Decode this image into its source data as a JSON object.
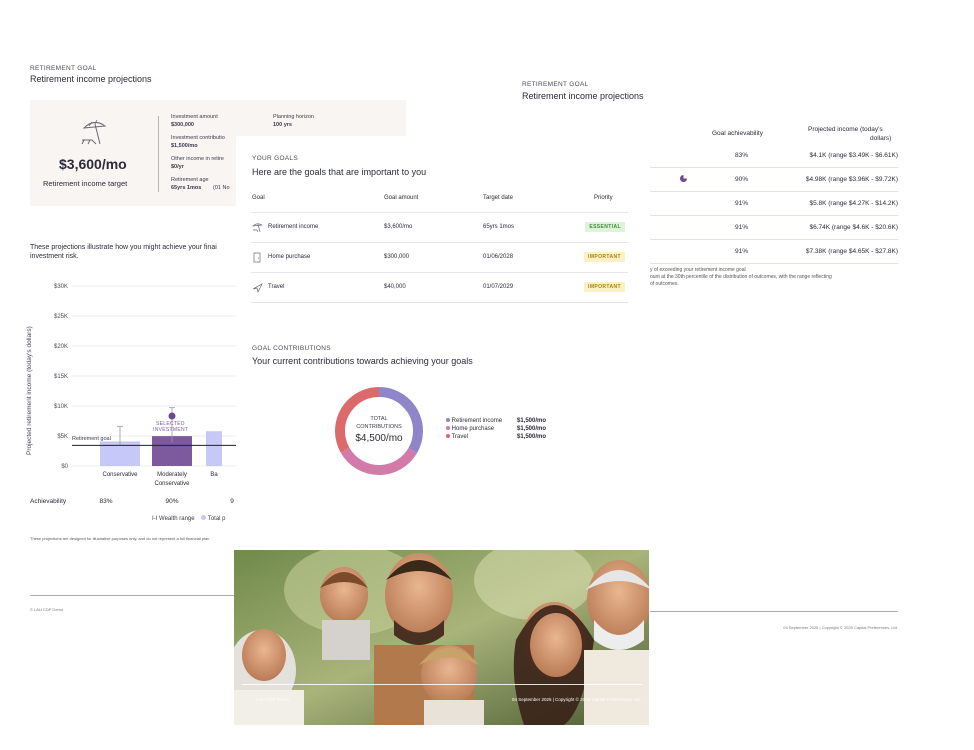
{
  "page1": {
    "eyebrow": "RETIREMENT GOAL",
    "title": "Retirement income projections",
    "target_amount": "$3,600/mo",
    "target_label": "Retirement income target",
    "details": [
      {
        "label": "Investment amount",
        "value": "$300,000"
      },
      {
        "label": "Investment contributio",
        "value": "$1,500/mo"
      },
      {
        "label": "Other income in retire",
        "value": "$0/yr"
      },
      {
        "label": "Retirement age",
        "value": "65yrs 1mos"
      }
    ],
    "retirement_age_extra": "(01 No",
    "planning_label": "Planning horizon",
    "planning_value": "100 yrs",
    "intro_line1": "These projections illustrate how you might achieve your finai",
    "intro_line2": "investment risk.",
    "ylabel": "Projected retirement income (today's dollars)",
    "retirement_goal_label": "Retirement goal",
    "selected_label_1": "SELECTED",
    "selected_label_2": "INVESTMENT",
    "achievability_label": "Achievability",
    "legend_wealth": "Wealth range",
    "legend_total": "Total p",
    "disclaimer": "These projections are designed for illustrative purposes only, and do not represent a full financial plan",
    "footer_left": "© LAU CDP Demo"
  },
  "chart_data": {
    "type": "bar",
    "title": "",
    "ylabel": "Projected retirement income (today's dollars)",
    "ylim": [
      0,
      30000
    ],
    "yticks": [
      "$0",
      "$5K",
      "$10K",
      "$15K",
      "$20K",
      "$25K",
      "$30K"
    ],
    "goal": 3600,
    "categories": [
      "Conservative",
      "Moderately Conservative",
      "Ba"
    ],
    "values": [
      4100,
      4980,
      5800
    ],
    "ranges": [
      [
        3490,
        6610
      ],
      [
        3960,
        9720
      ],
      [
        4270,
        14200
      ]
    ],
    "achievability": [
      "83%",
      "90%",
      "9"
    ],
    "selected_index": 1,
    "bar_colors": [
      "#c6c8f7",
      "#7d5a9e",
      "#c6c8f7"
    ]
  },
  "page2": {
    "eyebrow": "RETIREMENT GOAL",
    "title": "Retirement income projections",
    "col_achievability": "Goal achievability",
    "col_projected_1": "Projected income (today's",
    "col_projected_2": "dollars)",
    "rows": [
      {
        "achievability": "83%",
        "projected": "$4.1K (range $3.49K - $6.61K)"
      },
      {
        "achievability": "90%",
        "projected": "$4.98K (range $3.96K - $9.72K)"
      },
      {
        "achievability": "91%",
        "projected": "$5.8K (range $4.27K - $14.2K)"
      },
      {
        "achievability": "91%",
        "projected": "$6.74K (range $4.6K - $20.6K)"
      },
      {
        "achievability": "91%",
        "projected": "$7.38K (range $4.65K - $27.8K)"
      }
    ],
    "note_1": "y of exceeding your retirement income goal",
    "note_2": "ount at the 30th percentile of the distribution of outcomes, with the range reflecting",
    "note_3": "of outcomes.",
    "footer_right": "04 September 2025 | Copyright © 2025 Capital Preferences, Ltd."
  },
  "page3": {
    "eyebrow": "YOUR GOALS",
    "title": "Here are the goals that are important to you",
    "columns": [
      "Goal",
      "Goal amount",
      "Target date",
      "Priority"
    ],
    "goals": [
      {
        "name": "Retirement income",
        "amount": "$3,600/mo",
        "date": "65yrs 1mos",
        "priority": "ESSENTIAL",
        "icon": "beach-chair-icon"
      },
      {
        "name": "Home purchase",
        "amount": "$300,000",
        "date": "01/06/2028",
        "priority": "IMPORTANT",
        "icon": "door-icon"
      },
      {
        "name": "Travel",
        "amount": "$40,000",
        "date": "01/07/2029",
        "priority": "IMPORTANT",
        "icon": "plane-icon"
      }
    ],
    "contrib_eyebrow": "GOAL CONTRIBUTIONS",
    "contrib_title": "Your current contributions towards achieving your goals",
    "donut_label_1": "TOTAL",
    "donut_label_2": "CONTRIBUTIONS",
    "donut_total": "$4,500/mo",
    "contributions": [
      {
        "name": "Retirement income",
        "value": "$1,500/mo",
        "amount": 1500,
        "color": "#8f86c9"
      },
      {
        "name": "Home purchase",
        "value": "$1,500/mo",
        "amount": 1500,
        "color": "#d27aa8"
      },
      {
        "name": "Travel",
        "value": "$1,500/mo",
        "amount": 1500,
        "color": "#dc6a6a"
      }
    ]
  },
  "page4": {
    "footer_left": "LAU CDP Demo",
    "footer_right": "04 September 2025 | Copyright © 2025 Capital Preferences, Ltd."
  }
}
